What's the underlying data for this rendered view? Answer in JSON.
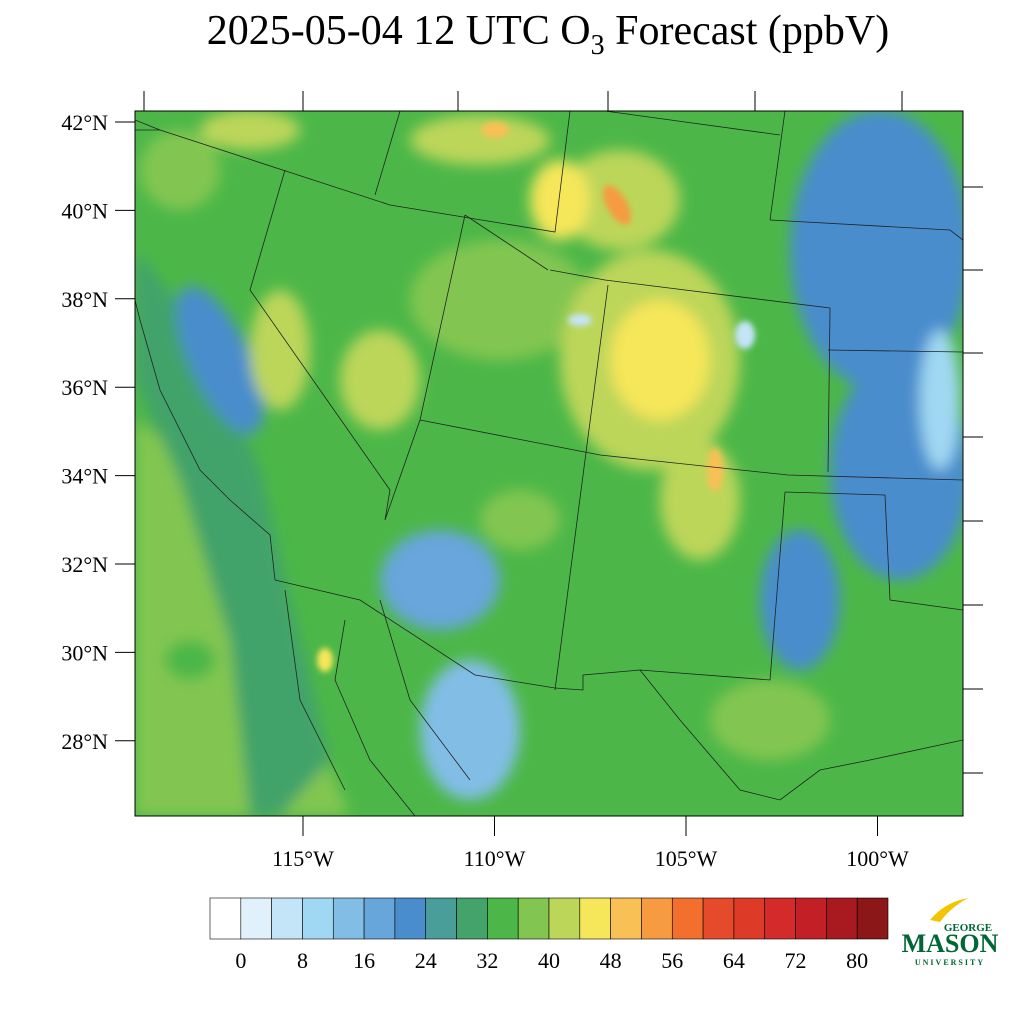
{
  "header": {
    "title_before": "2025-05-04 12 UTC O",
    "title_subscript": "3",
    "title_after": " Forecast (ppbV)"
  },
  "map": {
    "lat_ticks": [
      {
        "value": 42,
        "label": "42°N"
      },
      {
        "value": 40,
        "label": "40°N"
      },
      {
        "value": 38,
        "label": "38°N"
      },
      {
        "value": 36,
        "label": "36°N"
      },
      {
        "value": 34,
        "label": "34°N"
      },
      {
        "value": 32,
        "label": "32°N"
      },
      {
        "value": 30,
        "label": "30°N"
      },
      {
        "value": 28,
        "label": "28°N"
      }
    ],
    "lon_ticks": [
      {
        "value": -115,
        "label": "115°W"
      },
      {
        "value": -110,
        "label": "110°W"
      },
      {
        "value": -105,
        "label": "105°W"
      },
      {
        "value": -100,
        "label": "100°W"
      }
    ]
  },
  "colorbar": {
    "range": [
      -4,
      84
    ],
    "ticks": [
      0,
      8,
      16,
      24,
      32,
      40,
      48,
      56,
      64,
      72,
      80
    ],
    "colors": [
      "#ffffff",
      "#e1f1fb",
      "#c3e5f7",
      "#a0d8f3",
      "#82bde6",
      "#67a6db",
      "#4a8dcc",
      "#4a9e9a",
      "#43a36a",
      "#4cb748",
      "#82c651",
      "#bcd65a",
      "#f6e65a",
      "#f8c055",
      "#f69b40",
      "#f26f2e",
      "#e54b2a",
      "#dd3b27",
      "#d42a29",
      "#c21f26",
      "#a91a20",
      "#8b1719"
    ]
  },
  "logo": {
    "line1": "GEORGE",
    "line2": "MASON",
    "line3": "UNIVERSITY"
  }
}
